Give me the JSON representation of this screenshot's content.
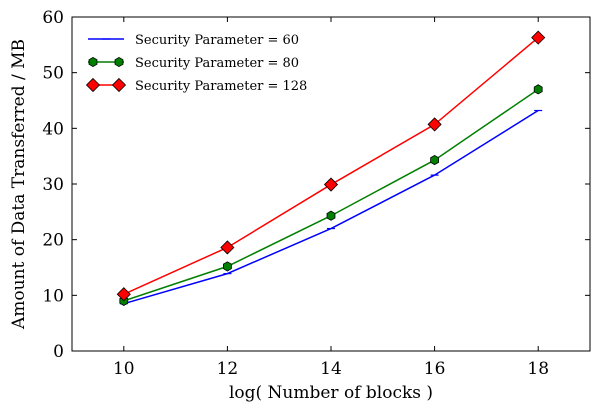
{
  "chart_data": {
    "type": "line",
    "xlabel": "log( Number of blocks )",
    "ylabel": "Amount of Data Transferred / MB",
    "xlim": [
      9,
      19
    ],
    "ylim": [
      0,
      60
    ],
    "xticks": [
      10,
      12,
      14,
      16,
      18
    ],
    "yticks": [
      0,
      10,
      20,
      30,
      40,
      50,
      60
    ],
    "x": [
      10,
      12,
      14,
      16,
      18
    ],
    "grid": false,
    "legend_position": "top-left",
    "series": [
      {
        "name": "Security Parameter = 60",
        "values": [
          8.5,
          13.9,
          22.0,
          31.6,
          43.2
        ],
        "color": "#0000ff",
        "marker": "hline"
      },
      {
        "name": "Security Parameter = 80",
        "values": [
          9.0,
          15.2,
          24.3,
          34.3,
          47.0
        ],
        "color": "#007f00",
        "marker": "hexagon"
      },
      {
        "name": "Security Parameter = 128",
        "values": [
          10.2,
          18.6,
          29.9,
          40.7,
          56.3
        ],
        "color": "#ff0000",
        "marker": "diamond"
      }
    ]
  }
}
